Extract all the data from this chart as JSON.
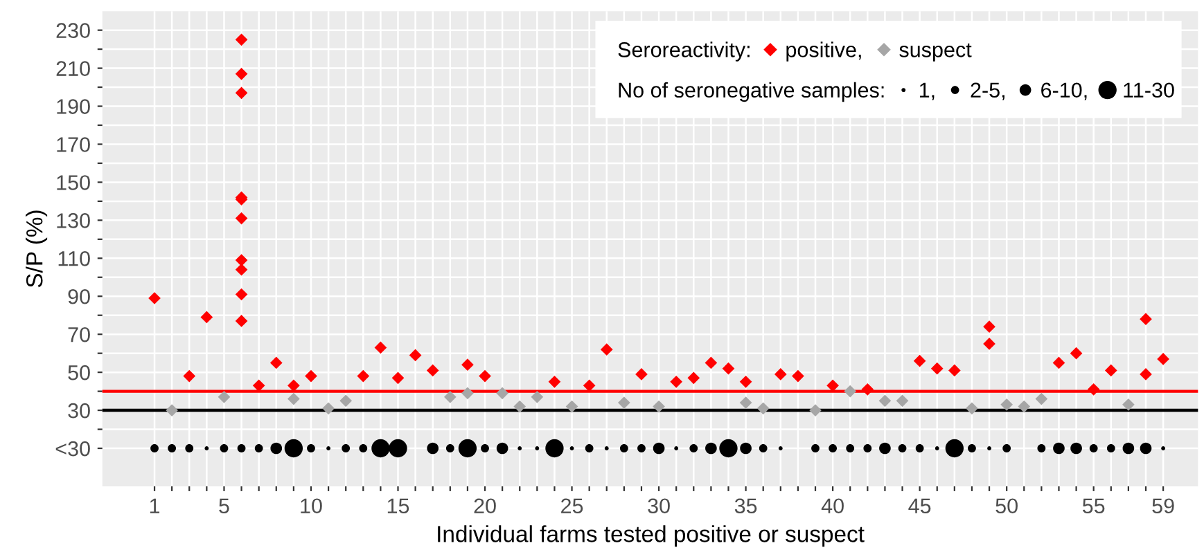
{
  "chart_data": {
    "type": "scatter",
    "xlabel": "Individual farms tested positive or suspect",
    "ylabel": "S/P (%)",
    "legend_title": "Seroreactivity:",
    "annotations": [
      "No of seronegative samples:"
    ],
    "xlim": [
      -2,
      61
    ],
    "ylim": [
      -10,
      240
    ],
    "xticks": [
      1,
      {
        "value": 2,
        "label": null
      },
      {
        "value": 3,
        "label": null
      },
      {
        "value": 4,
        "label": null
      },
      5,
      {
        "value": 6,
        "label": null
      },
      {
        "value": 7,
        "label": null
      },
      {
        "value": 8,
        "label": null
      },
      {
        "value": 9,
        "label": null
      },
      10,
      {
        "value": 11,
        "label": null
      },
      {
        "value": 12,
        "label": null
      },
      {
        "value": 13,
        "label": null
      },
      {
        "value": 14,
        "label": null
      },
      15,
      {
        "value": 16,
        "label": null
      },
      {
        "value": 17,
        "label": null
      },
      {
        "value": 18,
        "label": null
      },
      {
        "value": 19,
        "label": null
      },
      20,
      {
        "value": 21,
        "label": null
      },
      {
        "value": 22,
        "label": null
      },
      {
        "value": 23,
        "label": null
      },
      {
        "value": 24,
        "label": null
      },
      25,
      {
        "value": 26,
        "label": null
      },
      {
        "value": 27,
        "label": null
      },
      {
        "value": 28,
        "label": null
      },
      {
        "value": 29,
        "label": null
      },
      30,
      {
        "value": 31,
        "label": null
      },
      {
        "value": 32,
        "label": null
      },
      {
        "value": 33,
        "label": null
      },
      {
        "value": 34,
        "label": null
      },
      35,
      {
        "value": 36,
        "label": null
      },
      {
        "value": 37,
        "label": null
      },
      {
        "value": 38,
        "label": null
      },
      {
        "value": 39,
        "label": null
      },
      40,
      {
        "value": 41,
        "label": null
      },
      {
        "value": 42,
        "label": null
      },
      {
        "value": 43,
        "label": null
      },
      {
        "value": 44,
        "label": null
      },
      45,
      {
        "value": 46,
        "label": null
      },
      {
        "value": 47,
        "label": null
      },
      {
        "value": 48,
        "label": null
      },
      {
        "value": 49,
        "label": null
      },
      50,
      {
        "value": 51,
        "label": null
      },
      {
        "value": 52,
        "label": null
      },
      {
        "value": 53,
        "label": null
      },
      {
        "value": 54,
        "label": null
      },
      55,
      {
        "value": 56,
        "label": null
      },
      {
        "value": 57,
        "label": null
      },
      {
        "value": 58,
        "label": null
      },
      59
    ],
    "yticks": [
      {
        "value": 10,
        "label": "<30"
      },
      {
        "value": 20,
        "label": null
      },
      30,
      {
        "value": 40,
        "label": null
      },
      50,
      {
        "value": 60,
        "label": null
      },
      70,
      {
        "value": 80,
        "label": null
      },
      90,
      {
        "value": 100,
        "label": null
      },
      110,
      {
        "value": 120,
        "label": null
      },
      130,
      {
        "value": 140,
        "label": null
      },
      150,
      {
        "value": 160,
        "label": null
      },
      170,
      {
        "value": 180,
        "label": null
      },
      190,
      {
        "value": 200,
        "label": null
      },
      210,
      {
        "value": 220,
        "label": null
      },
      230
    ],
    "grid": true,
    "legend": "top right",
    "ref_lines": [
      {
        "axis": "y",
        "value": 40,
        "color": "#ff0000"
      },
      {
        "axis": "y",
        "value": 30,
        "color": "#000000"
      }
    ],
    "size_legend": [
      {
        "value": 0.05,
        "label": "1,"
      },
      {
        "value": 0.2,
        "label": "2-5,"
      },
      {
        "value": 0.4,
        "label": "6-10,"
      },
      {
        "value": 1,
        "label": "11-30"
      }
    ],
    "series": [
      {
        "name": "positive,",
        "color": "#ff0000",
        "marker": "diamond",
        "x": [
          1,
          3,
          4,
          6,
          6,
          6,
          6,
          6,
          6,
          6,
          6,
          6,
          6,
          7,
          8,
          9,
          10,
          13,
          14,
          15,
          16,
          17,
          19,
          20,
          24,
          26,
          27,
          29,
          31,
          32,
          33,
          34,
          35,
          37,
          38,
          40,
          42,
          45,
          46,
          47,
          49,
          49,
          53,
          54,
          55,
          56,
          58,
          58,
          59
        ],
        "values": [
          89,
          48,
          79,
          225,
          207,
          197,
          142,
          141,
          131,
          109,
          104,
          91,
          77,
          43,
          55,
          43,
          48,
          48,
          63,
          47,
          59,
          51,
          54,
          48,
          45,
          43,
          62,
          49,
          45,
          47,
          55,
          52,
          45,
          49,
          48,
          43,
          41,
          56,
          52,
          51,
          74,
          65,
          55,
          60,
          41,
          51,
          78,
          49,
          57
        ]
      },
      {
        "name": "suspect",
        "color": "#a6a6a6",
        "marker": "diamond",
        "x": [
          2,
          5,
          9,
          11,
          12,
          18,
          19,
          21,
          22,
          23,
          25,
          28,
          30,
          35,
          36,
          39,
          41,
          43,
          44,
          48,
          50,
          51,
          52,
          57
        ],
        "values": [
          30,
          37,
          36,
          31,
          35,
          37,
          39,
          39,
          32,
          37,
          32,
          34,
          32,
          34,
          31,
          30,
          40,
          35,
          35,
          31,
          33,
          32,
          36,
          33
        ]
      },
      {
        "color": "#000000",
        "type": "bubble",
        "marker": "circle",
        "x": [
          1,
          2,
          3,
          4,
          5,
          6,
          7,
          8,
          9,
          10,
          11,
          12,
          13,
          14,
          15,
          17,
          18,
          19,
          20,
          21,
          22,
          23,
          24,
          25,
          26,
          27,
          28,
          29,
          30,
          31,
          32,
          33,
          34,
          35,
          36,
          37,
          39,
          40,
          41,
          42,
          43,
          44,
          45,
          46,
          47,
          48,
          49,
          50,
          52,
          53,
          54,
          55,
          56,
          57,
          58,
          59
        ],
        "values": [
          10,
          10,
          10,
          10,
          10,
          10,
          10,
          10,
          10,
          10,
          10,
          10,
          10,
          10,
          10,
          10,
          10,
          10,
          10,
          10,
          10,
          10,
          10,
          10,
          10,
          10,
          10,
          10,
          10,
          10,
          10,
          10,
          10,
          10,
          10,
          10,
          10,
          10,
          10,
          10,
          10,
          10,
          10,
          10,
          10,
          10,
          10,
          10,
          10,
          10,
          10,
          10,
          10,
          10,
          10,
          10
        ],
        "sizes": [
          0.2,
          0.2,
          0.2,
          0.05,
          0.2,
          0.2,
          0.2,
          0.4,
          1,
          0.2,
          0.05,
          0.2,
          0.2,
          1,
          1,
          0.4,
          0.2,
          1,
          0.2,
          0.4,
          0.05,
          0.05,
          1,
          0.05,
          0.2,
          0.05,
          0.2,
          0.2,
          0.4,
          0.05,
          0.2,
          0.4,
          1,
          0.4,
          0.2,
          0.05,
          0.2,
          0.2,
          0.2,
          0.2,
          0.4,
          0.2,
          0.2,
          0.05,
          1,
          0.2,
          0.05,
          0.2,
          0.2,
          0.4,
          0.4,
          0.2,
          0.2,
          0.4,
          0.4,
          0.05
        ]
      }
    ]
  }
}
